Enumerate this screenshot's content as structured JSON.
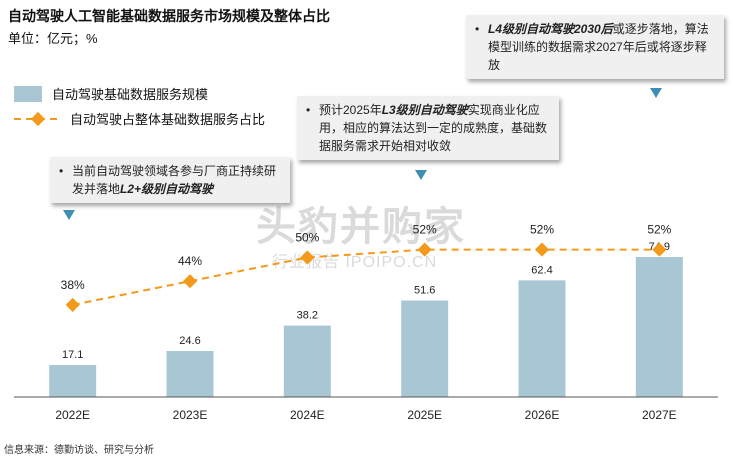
{
  "title": "自动驾驶人工智能基础数据服务市场规模及整体占比",
  "unit": "单位：亿元；%",
  "legend": {
    "bar": "自动驾驶基础数据服务规模",
    "line": "自动驾驶占整体基础数据服务占比"
  },
  "callouts": {
    "c1": {
      "pre": "当前自动驾驶领域各参与厂商正持续研发并落地",
      "bold": "L2+级别自动驾驶",
      "post": ""
    },
    "c2": {
      "pre": "预计2025年",
      "bold": "L3级别自动驾驶",
      "post": "实现商业化应用，相应的算法达到一定的成熟度，基础数据服务需求开始相对收敛"
    },
    "c3": {
      "pre": "",
      "bold": "L4级别自动驾驶2030后",
      "post": "或逐步落地，算法模型训练的数据需求2027年后或将逐步释放"
    }
  },
  "watermark": {
    "main": "头豹并购家",
    "sub": "行业报告 IPOIPO.CN"
  },
  "source": "信息来源：德勤访谈、研究与分析",
  "colors": {
    "bar": "#a9c6d4",
    "line": "#f39a1c",
    "axis": "#555555",
    "callout_bg": "#f0f0f0",
    "triangle": "#3f8fb0"
  },
  "chart_data": {
    "type": "bar",
    "categories": [
      "2022E",
      "2023E",
      "2024E",
      "2025E",
      "2026E",
      "2027E"
    ],
    "series": [
      {
        "name": "自动驾驶基础数据服务规模",
        "type": "bar",
        "values": [
          17.1,
          24.6,
          38.2,
          51.6,
          62.4,
          74.9
        ],
        "labels": [
          "17.1",
          "24.6",
          "38.2",
          "51.6",
          "62.4",
          "74.9"
        ]
      },
      {
        "name": "自动驾驶占整体基础数据服务占比",
        "type": "line",
        "values": [
          38,
          44,
          50,
          52,
          52,
          52
        ],
        "labels": [
          "38%",
          "44%",
          "50%",
          "52%",
          "52%",
          "52%"
        ]
      }
    ],
    "ylim_bar": [
      0,
      80
    ],
    "ylim_line": [
      0,
      60
    ],
    "grid": false,
    "legend_position": "top-left"
  }
}
